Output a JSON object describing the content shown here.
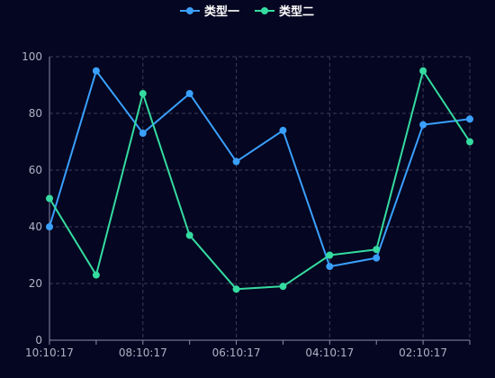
{
  "chart_data": {
    "type": "line",
    "title": "",
    "xlabel": "",
    "ylabel": "",
    "categories": [
      "10:10:17",
      "",
      "08:10:17",
      "",
      "06:10:17",
      "",
      "04:10:17",
      "",
      "02:10:17",
      ""
    ],
    "x_tick_labels": [
      "10:10:17",
      "08:10:17",
      "06:10:17",
      "04:10:17",
      "02:10:17"
    ],
    "y_ticks": [
      "0",
      "20",
      "40",
      "60",
      "80",
      "100"
    ],
    "ylim": [
      0,
      100
    ],
    "grid": true,
    "legend_position": "top-center",
    "series": [
      {
        "name": "类型一",
        "color": "#3aa0ff",
        "values": [
          40,
          95,
          73,
          87,
          63,
          74,
          26,
          29,
          76,
          78
        ]
      },
      {
        "name": "类型二",
        "color": "#35dba0",
        "values": [
          50,
          23,
          87,
          37,
          18,
          19,
          30,
          32,
          95,
          70
        ]
      }
    ]
  },
  "colors": {
    "background": "#050621",
    "axis": "#8a8fa8",
    "grid": "#3a3e55"
  }
}
